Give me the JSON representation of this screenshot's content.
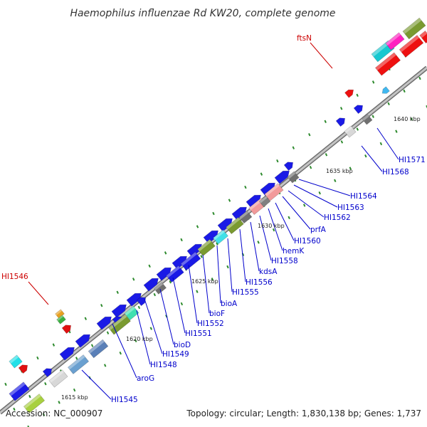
{
  "title": "Haemophilus influenzae Rd KW20, complete genome",
  "footer": {
    "accession": "Accession: NC_000907",
    "summary": "Topology: circular; Length: 1,830,138 bp; Genes: 1,737"
  },
  "colors": {
    "label_blue": "#0000cc",
    "label_red": "#cc0000",
    "backbone": "#9a9a9a",
    "tick": "#2d8a2d"
  },
  "scale_labels": [
    "1615 kbp",
    "1620 kbp",
    "1625 kbp",
    "1630 kbp",
    "1635 kbp",
    "1640 kbp"
  ],
  "gene_labels": [
    {
      "text": "ftsN",
      "color": "red"
    },
    {
      "text": "HI1546",
      "color": "red"
    },
    {
      "text": "HI1571",
      "color": "blue"
    },
    {
      "text": "HI1568",
      "color": "blue"
    },
    {
      "text": "HI1564",
      "color": "blue"
    },
    {
      "text": "HI1563",
      "color": "blue"
    },
    {
      "text": "HI1562",
      "color": "blue"
    },
    {
      "text": "prfA",
      "color": "blue"
    },
    {
      "text": "HI1560",
      "color": "blue"
    },
    {
      "text": "hemK",
      "color": "blue"
    },
    {
      "text": "HI1558",
      "color": "blue"
    },
    {
      "text": "kdsA",
      "color": "blue"
    },
    {
      "text": "HI1556",
      "color": "blue"
    },
    {
      "text": "HI1555",
      "color": "blue"
    },
    {
      "text": "bioA",
      "color": "blue"
    },
    {
      "text": "bioF",
      "color": "blue"
    },
    {
      "text": "HI1552",
      "color": "blue"
    },
    {
      "text": "HI1551",
      "color": "blue"
    },
    {
      "text": "bioD",
      "color": "blue"
    },
    {
      "text": "HI1549",
      "color": "blue"
    },
    {
      "text": "HI1548",
      "color": "blue"
    },
    {
      "text": "aroG",
      "color": "blue"
    },
    {
      "text": "HI1545",
      "color": "blue"
    }
  ]
}
